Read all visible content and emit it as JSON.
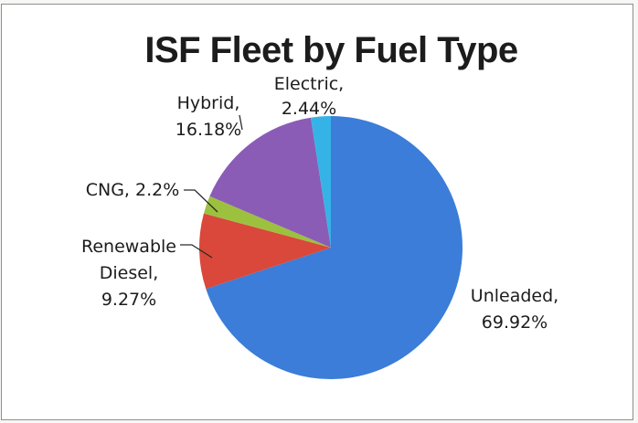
{
  "chart_data": {
    "type": "pie",
    "title": "ISF Fleet by Fuel Type",
    "legend": "none",
    "slices": [
      {
        "name": "Unleaded",
        "value": 69.92,
        "label_lines": [
          "Unleaded,",
          "69.92%"
        ],
        "color": "#3b7dd8"
      },
      {
        "name": "Renewable Diesel",
        "value": 9.27,
        "label_lines": [
          "Renewable",
          "Diesel,",
          "9.27%"
        ],
        "color": "#d9483b"
      },
      {
        "name": "CNG",
        "value": 2.2,
        "label_lines": [
          "CNG, 2.2%"
        ],
        "color": "#9cc13f"
      },
      {
        "name": "Hybrid",
        "value": 16.18,
        "label_lines": [
          "Hybrid,",
          "16.18%"
        ],
        "color": "#8a5cb6"
      },
      {
        "name": "Electric",
        "value": 2.44,
        "label_lines": [
          "Electric,",
          "2.44%"
        ],
        "color": "#35b3e6"
      }
    ]
  }
}
